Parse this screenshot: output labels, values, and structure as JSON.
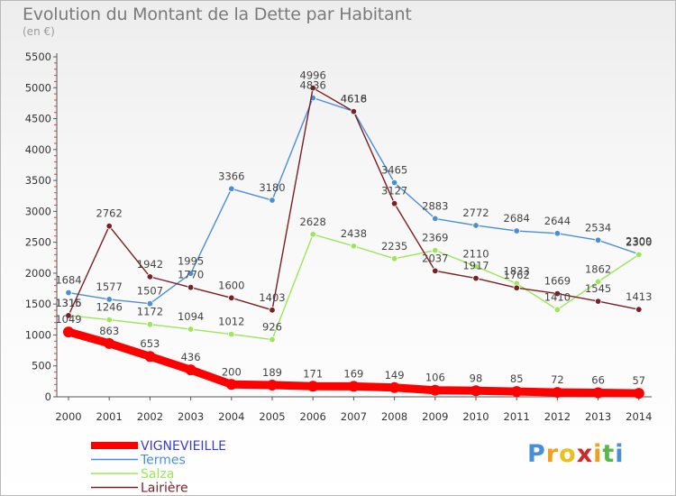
{
  "header": {
    "title": "Evolution du Montant de la Dette par Habitant",
    "unit": "(en €)"
  },
  "logo": {
    "text": "Proxiti",
    "letter_colors": [
      "#4a8fd6",
      "#f0a020",
      "#e8c020",
      "#d02828",
      "#f0a020",
      "#58b848",
      "#4a8fd6"
    ]
  },
  "chart_data": {
    "type": "line",
    "title": "Evolution du Montant de la Dette par Habitant",
    "ylabel": "(en €)",
    "xlabel": "",
    "ylim": [
      0,
      5500
    ],
    "y_ticks": [
      0,
      500,
      1000,
      1500,
      2000,
      2500,
      3000,
      3500,
      4000,
      4500,
      5000,
      5500
    ],
    "grid": false,
    "legend_position": "bottom-left",
    "categories": [
      "2000",
      "2001",
      "2002",
      "2003",
      "2004",
      "2005",
      "2006",
      "2007",
      "2008",
      "2009",
      "2010",
      "2011",
      "2012",
      "2013",
      "2014"
    ],
    "series": [
      {
        "name": "VIGNEVIEILLE",
        "color": "#ff0000",
        "highlight": true,
        "values": [
          1049,
          863,
          653,
          436,
          200,
          189,
          171,
          169,
          149,
          106,
          98,
          85,
          72,
          66,
          57
        ]
      },
      {
        "name": "Termes",
        "color": "#4a8fd6",
        "values": [
          1684,
          1577,
          1507,
          1995,
          3366,
          3180,
          4836,
          4618,
          3465,
          2883,
          2772,
          2684,
          2644,
          2534,
          2309
        ]
      },
      {
        "name": "Salza",
        "color": "#9ce65a",
        "values": [
          1316,
          1246,
          1172,
          1094,
          1012,
          926,
          2628,
          2438,
          2235,
          2369,
          2110,
          1833,
          1410,
          1862,
          2300
        ]
      },
      {
        "name": "Lairière",
        "color": "#7a1f23",
        "values": [
          1315,
          2762,
          1942,
          1770,
          1600,
          1403,
          4996,
          4616,
          3127,
          2037,
          1917,
          1762,
          1669,
          1545,
          1413
        ]
      }
    ]
  }
}
